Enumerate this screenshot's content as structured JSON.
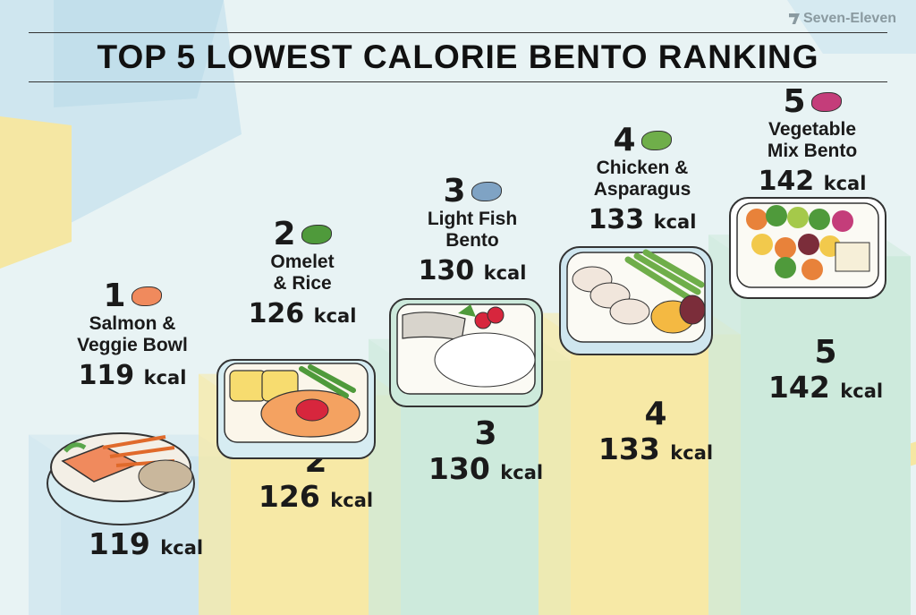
{
  "brand": "Seven-Eleven",
  "title": "TOP 5 LOWEST CALORIE BENTO RANKING",
  "chart_data": {
    "type": "bar",
    "title": "TOP 5 LOWEST CALORIE BENTO RANKING",
    "categories": [
      "Salmon & Veggie Bowl",
      "Omelet & Rice",
      "Light Fish Bento",
      "Chicken & Asparagus",
      "Vegetable Mix Bento"
    ],
    "series": [
      {
        "values": [
          119,
          126,
          130,
          133,
          142
        ]
      }
    ],
    "unit": "kcal",
    "items": [
      {
        "rank": "1",
        "name_lines": [
          "Salmon &",
          "Veggie Bowl"
        ],
        "kcal_value": "119",
        "icon": "salmon-icon"
      },
      {
        "rank": "2",
        "name_lines": [
          "Omelet",
          "& Rice"
        ],
        "kcal_value": "126",
        "icon": "rice-bowl-and-edamame-icon"
      },
      {
        "rank": "3",
        "name_lines": [
          "Light Fish",
          "Bento"
        ],
        "kcal_value": "130",
        "icon": "fish-icon"
      },
      {
        "rank": "4",
        "name_lines": [
          "Chicken &",
          "Asparagus"
        ],
        "kcal_value": "133",
        "icon": "asparagus-icon"
      },
      {
        "rank": "5",
        "name_lines": [
          "Vegetable",
          "Mix Bento"
        ],
        "kcal_value": "142",
        "icon": "vegetables-icon"
      }
    ],
    "colors": [
      "#cfe6ef",
      "#f7e9a6",
      "#cdeadc",
      "#f7e9a6",
      "#cdeadc"
    ]
  }
}
